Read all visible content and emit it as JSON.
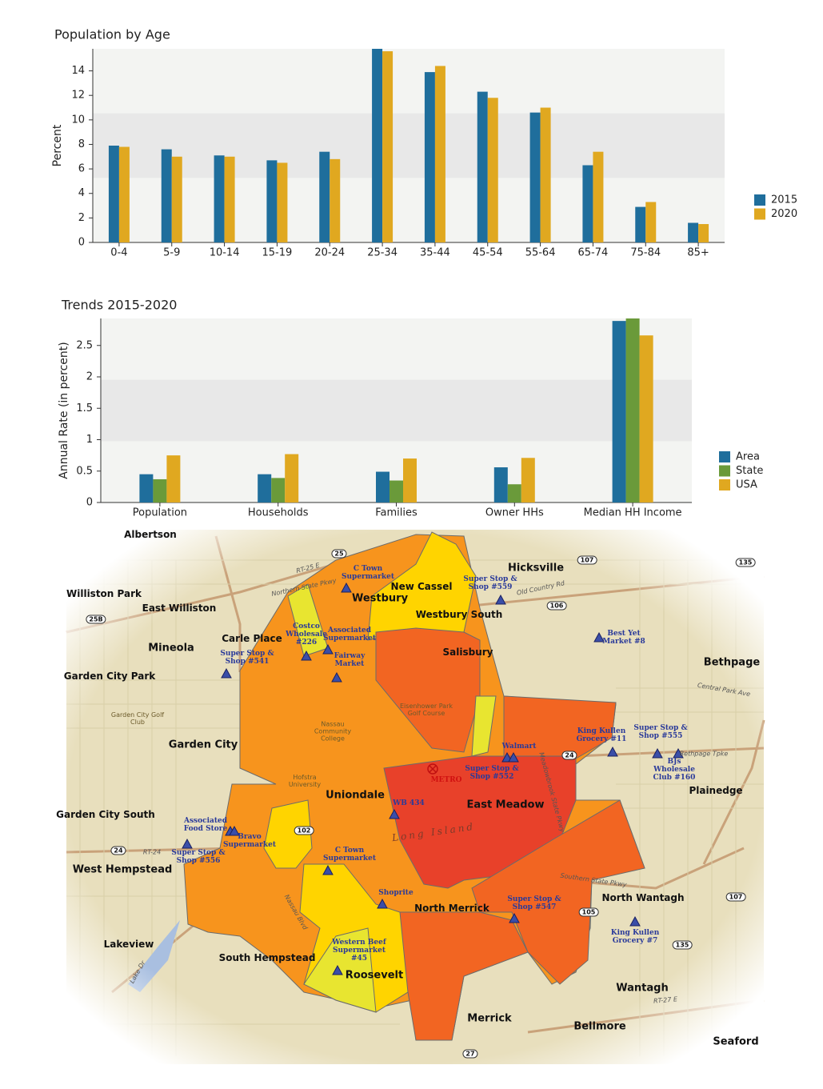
{
  "chart_data": [
    {
      "type": "bar",
      "title": "Population by Age",
      "y_label": "Percent",
      "categories": [
        "0-4",
        "5-9",
        "10-14",
        "15-19",
        "20-24",
        "25-34",
        "35-44",
        "45-54",
        "55-64",
        "65-74",
        "75-84",
        "85+"
      ],
      "series": [
        {
          "name": "2015",
          "color": "#1f6e9c",
          "values": [
            7.9,
            7.6,
            7.1,
            6.7,
            7.4,
            15.8,
            13.9,
            12.3,
            10.6,
            6.3,
            2.9,
            1.6
          ]
        },
        {
          "name": "2020",
          "color": "#e0a820",
          "values": [
            7.8,
            7.0,
            7.0,
            6.5,
            6.8,
            15.6,
            14.4,
            11.8,
            11.0,
            7.4,
            3.3,
            1.5
          ]
        }
      ],
      "ylim": [
        0,
        15.8
      ],
      "yticks": [
        0,
        2,
        4,
        6,
        8,
        10,
        12,
        14
      ],
      "legend": "right"
    },
    {
      "type": "bar",
      "title": "Trends 2015-2020",
      "y_label": "Annual Rate (in percent)",
      "categories": [
        "Population",
        "Households",
        "Families",
        "Owner HHs",
        "Median HH Income"
      ],
      "series": [
        {
          "name": "Area",
          "color": "#1f6e9c",
          "values": [
            0.45,
            0.45,
            0.49,
            0.56,
            2.89
          ]
        },
        {
          "name": "State",
          "color": "#6a9a3a",
          "values": [
            0.37,
            0.39,
            0.35,
            0.29,
            2.93
          ]
        },
        {
          "name": "USA",
          "color": "#e0a820",
          "values": [
            0.75,
            0.77,
            0.7,
            0.71,
            2.66
          ]
        }
      ],
      "ylim": [
        0,
        2.93
      ],
      "yticks": [
        0,
        0.5,
        1,
        1.5,
        2,
        2.5
      ],
      "legend": "right"
    }
  ],
  "map": {
    "places": [
      "Albertson",
      "Hicksville",
      "Westbury",
      "Williston Park",
      "East Williston",
      "Mineola",
      "Carle Place",
      "Bethpage",
      "Garden City Park",
      "Garden City",
      "Uniondale",
      "East Meadow",
      "Plainedge",
      "Garden City South",
      "West Hempstead",
      "North Wantagh",
      "Lakeview",
      "South Hempstead",
      "Roosevelt",
      "Wantagh",
      "Merrick",
      "Bellmore",
      "Seaford",
      "New Cassel",
      "Westbury South",
      "Salisbury",
      "North Merrick"
    ],
    "features": [
      "Nassau Community College",
      "Hofstra University",
      "Eisenhower Park Golf Course",
      "Garden City Golf Club",
      "Long Island"
    ],
    "stores": [
      "C Town Supermarket",
      "Super Stop & Shop #559",
      "Costco Wholesale #226",
      "Associated Supermarket",
      "Fairway Market",
      "Super Stop & Shop #541",
      "Best Yet Market #8",
      "King Kullen Grocery #11",
      "Super Stop & Shop #555",
      "Walmart",
      "Super Stop & Shop #552",
      "BJs Wholesale Club #160",
      "WB 434",
      "Associated Food Store",
      "Bravo Supermarket",
      "Super Stop & Shop #556",
      "C Town Supermarket",
      "Shoprite",
      "Super Stop & Shop #547",
      "King Kullen Grocery #7",
      "Western Beef Supermarket #45"
    ],
    "site": "METRO",
    "roads": [
      "Northern State Pkwy",
      "Old Country Rd",
      "Central Park Ave",
      "Bethpage Tpke",
      "Southern State Pkwy",
      "Nassau Blvd",
      "Meadowbrook State Pkwy",
      "RT-25 E",
      "RT-24",
      "RT-27 E",
      "Lake Dr"
    ],
    "shields": [
      "25",
      "107",
      "135",
      "106",
      "25B",
      "24",
      "102",
      "105",
      "107",
      "135",
      "24",
      "27"
    ]
  }
}
